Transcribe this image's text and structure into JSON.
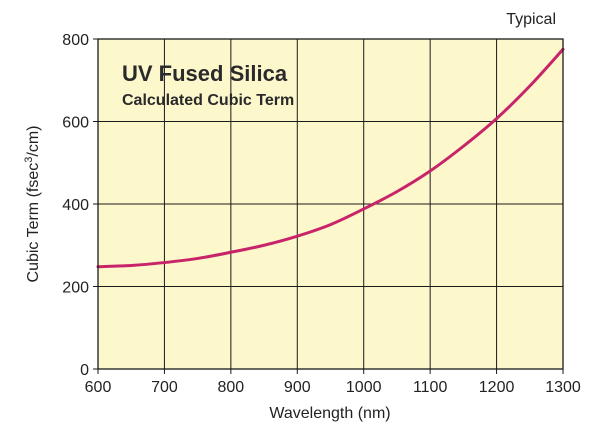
{
  "chart_data": {
    "type": "line",
    "title": "UV Fused Silica",
    "subtitle": "Calculated Cubic Term",
    "corner_note": "Typical",
    "xlabel": "Wavelength (nm)",
    "ylabel_prefix": "Cubic Term (fsec",
    "ylabel_sup": "3",
    "ylabel_suffix": "/cm)",
    "xlim": [
      600,
      1300
    ],
    "ylim": [
      0,
      800
    ],
    "x_ticks": [
      "600",
      "700",
      "800",
      "900",
      "1000",
      "1100",
      "1200",
      "1300"
    ],
    "y_ticks": [
      "0",
      "200",
      "400",
      "600",
      "800"
    ],
    "grid": true,
    "plot_background": "#fdf7cc",
    "grid_color": "#1a1a1a",
    "series": [
      {
        "color": "#c8246a",
        "x": [
          600,
          650,
          700,
          750,
          800,
          850,
          900,
          950,
          1000,
          1050,
          1100,
          1150,
          1200,
          1250,
          1300
        ],
        "y": [
          248,
          251,
          258,
          268,
          283,
          300,
          322,
          350,
          388,
          430,
          480,
          540,
          607,
          686,
          775
        ]
      }
    ]
  }
}
